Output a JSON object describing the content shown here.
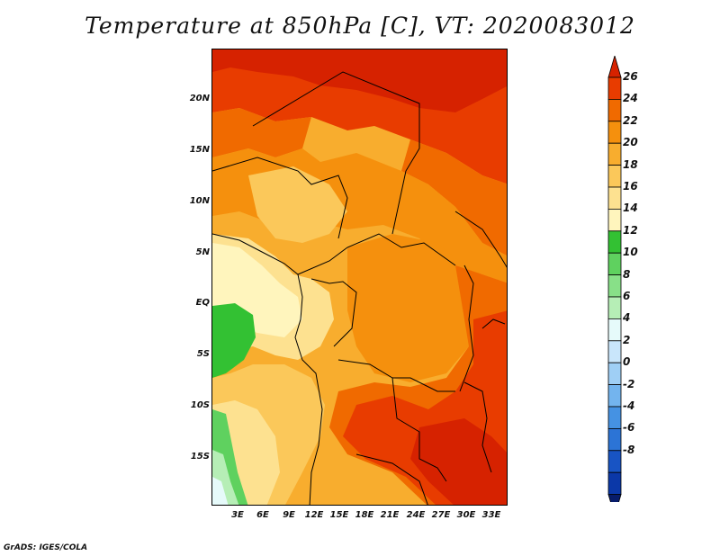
{
  "title": "Temperature at 850hPa [C], VT: 2020083012",
  "credit": "GrADS: IGES/COLA",
  "axes": {
    "lat_labels": [
      "20N",
      "15N",
      "10N",
      "5N",
      "EQ",
      "5S",
      "10S",
      "15S"
    ],
    "lat_values": [
      20,
      15,
      10,
      5,
      0,
      -5,
      -10,
      -15
    ],
    "lon_labels": [
      "3E",
      "6E",
      "9E",
      "12E",
      "15E",
      "18E",
      "21E",
      "24E",
      "27E",
      "30E",
      "33E"
    ],
    "lon_values": [
      3,
      6,
      9,
      12,
      15,
      18,
      21,
      24,
      27,
      30,
      33
    ],
    "lat_range": [
      -19.5,
      25
    ],
    "lon_range": [
      0,
      35
    ]
  },
  "colorbar": {
    "labels": [
      "26",
      "24",
      "22",
      "20",
      "18",
      "16",
      "14",
      "12",
      "10",
      "8",
      "6",
      "4",
      "2",
      "0",
      "-2",
      "-4",
      "-6",
      "-8"
    ],
    "colors": [
      "#d62200",
      "#e83c00",
      "#f06a00",
      "#f5900d",
      "#f8ad2e",
      "#fbc85a",
      "#fde190",
      "#fff5bd",
      "#33c133",
      "#5fd15f",
      "#88e088",
      "#b6eeb6",
      "#e6fafa",
      "#c9e6fb",
      "#9fcff5",
      "#73b4ee",
      "#4592e3",
      "#2c74d6",
      "#1854c4",
      "#0b38a8",
      "#071c6a"
    ]
  }
}
